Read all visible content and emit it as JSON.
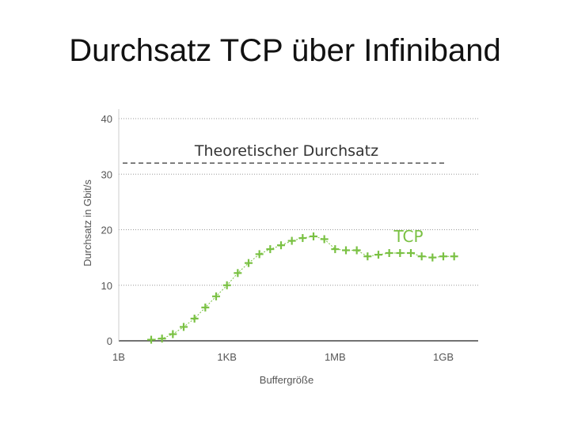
{
  "slide": {
    "title": "Durchsatz TCP über Infiniband"
  },
  "colors": {
    "series": "#7ac143",
    "theoretical": "#555555",
    "grid": "#999999",
    "axis": "#444444"
  },
  "chart_data": {
    "type": "line",
    "xlabel": "Buffergröße",
    "ylabel": "Durchsatz in Gbit/s",
    "x_scale": "log",
    "x_ticks": [
      {
        "value": 1,
        "label": "1B"
      },
      {
        "value": 1024,
        "label": "1KB"
      },
      {
        "value": 1048576,
        "label": "1MB"
      },
      {
        "value": 1073741824,
        "label": "1GB"
      }
    ],
    "ylim": [
      0,
      40
    ],
    "y_ticks": [
      0,
      10,
      20,
      30,
      40
    ],
    "grid": true,
    "annotations": [
      {
        "text": "Theoretischer Durchsatz",
        "y": 32,
        "line_style": "dashed",
        "color": "#555555"
      },
      {
        "text": "TCP",
        "color": "#7ac143"
      }
    ],
    "series": [
      {
        "marker": "+",
        "color": "#7ac143",
        "x": [
          8,
          16,
          32,
          64,
          128,
          256,
          512,
          1024,
          2048,
          4096,
          8192,
          16384,
          32768,
          65536,
          131072,
          262144,
          524288,
          1048576,
          2097152,
          4194304,
          8388608,
          16777216,
          33554432,
          67108864,
          134217728,
          268435456,
          536870912,
          1073741824,
          2147483648
        ],
        "y": [
          0.2,
          0.4,
          1.2,
          2.5,
          4.0,
          6.0,
          8.0,
          10.0,
          12.2,
          14.0,
          15.6,
          16.5,
          17.2,
          18.0,
          18.5,
          18.8,
          18.3,
          16.5,
          16.3,
          16.3,
          15.2,
          15.5,
          15.8,
          15.8,
          15.8,
          15.2,
          15.0,
          15.2,
          15.2
        ]
      }
    ]
  }
}
